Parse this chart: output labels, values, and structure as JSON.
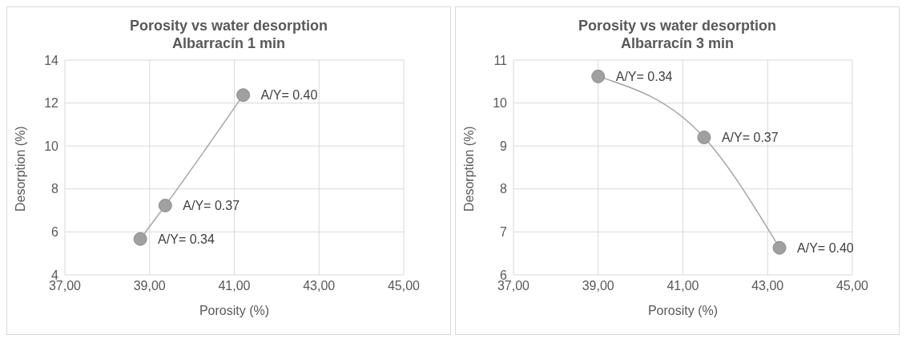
{
  "chart_data": [
    {
      "type": "line",
      "title": "Porosity vs water desorption\nAlbarracín 1 min",
      "xlabel": "Porosity (%)",
      "ylabel": "Desorption (%)",
      "x": [
        38.78,
        39.37,
        41.21
      ],
      "series": [
        {
          "color": "#a6a6a6",
          "values": [
            5.67,
            7.23,
            12.37
          ]
        }
      ],
      "xlim": [
        37,
        45
      ],
      "xticks": [
        {
          "value": 37,
          "label": "37,00"
        },
        {
          "value": 39,
          "label": "39,00"
        },
        {
          "value": 41,
          "label": "41,00"
        },
        {
          "value": 43,
          "label": "43,00"
        },
        {
          "value": 45,
          "label": "45,00"
        }
      ],
      "ylim": [
        4,
        14
      ],
      "yticks": [
        4,
        6,
        8,
        10,
        12,
        14
      ],
      "grid": true,
      "marker": "circle",
      "annotations": [
        {
          "text": "A/Y= 0.34",
          "x": 38.78,
          "y": 5.67
        },
        {
          "text": "A/Y= 0.37",
          "x": 39.37,
          "y": 7.23
        },
        {
          "text": "A/Y= 0.40",
          "x": 41.21,
          "y": 12.37
        }
      ]
    },
    {
      "type": "line",
      "title": "Porosity vs water desorption\nAlbarracín 3 min",
      "xlabel": "Porosity (%)",
      "ylabel": "Desorption (%)",
      "x": [
        39.0,
        41.5,
        43.28
      ],
      "series": [
        {
          "color": "#a6a6a6",
          "values": [
            10.62,
            9.2,
            6.63
          ]
        }
      ],
      "xlim": [
        37,
        45
      ],
      "xticks": [
        {
          "value": 37,
          "label": "37,00"
        },
        {
          "value": 39,
          "label": "39,00"
        },
        {
          "value": 41,
          "label": "41,00"
        },
        {
          "value": 43,
          "label": "43,00"
        },
        {
          "value": 45,
          "label": "45,00"
        }
      ],
      "ylim": [
        6,
        11
      ],
      "yticks": [
        6,
        7,
        8,
        9,
        10,
        11
      ],
      "grid": true,
      "marker": "circle",
      "annotations": [
        {
          "text": "A/Y= 0.34",
          "x": 39.0,
          "y": 10.62
        },
        {
          "text": "A/Y= 0.37",
          "x": 41.5,
          "y": 9.2
        },
        {
          "text": "A/Y= 0.40",
          "x": 43.28,
          "y": 6.63
        }
      ]
    }
  ]
}
